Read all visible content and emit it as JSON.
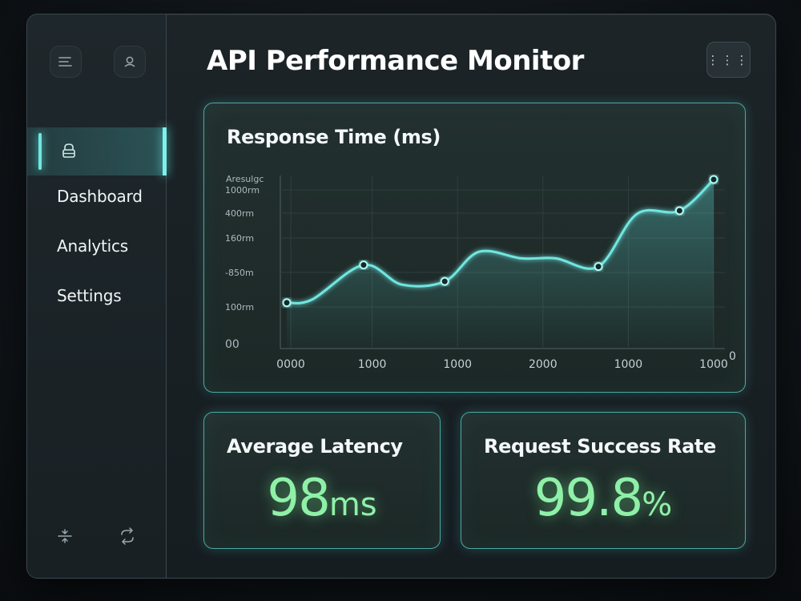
{
  "app": {
    "title": "API Performance Monitor",
    "accent": "#6fe6e0",
    "success": "#8ff0a8"
  },
  "sidebar": {
    "top_icons": [
      "menu-icon",
      "user-icon"
    ],
    "active_icon": "lock-icon",
    "items": [
      {
        "label": "Dashboard"
      },
      {
        "label": "Analytics"
      },
      {
        "label": "Settings"
      }
    ],
    "bottom_icons": [
      "collapse-icon",
      "refresh-icon"
    ]
  },
  "header": {
    "more_label": "⋮⋮⋮"
  },
  "chart_data": {
    "type": "line",
    "title": "Response Time (ms)",
    "ylabel": "Aresulgc",
    "y_ticks": [
      "1000rm",
      "400rm",
      "160rm",
      "-850m",
      "100rm",
      "00"
    ],
    "right_tick": "0",
    "x_ticks": [
      "0000",
      "1000",
      "1000",
      "2000",
      "1000",
      "1000"
    ],
    "series": [
      {
        "points": [
          {
            "x": 0,
            "y": 0.25,
            "marker": true
          },
          {
            "x": 0.06,
            "y": 0.27
          },
          {
            "x": 0.18,
            "y": 0.48,
            "marker": true
          },
          {
            "x": 0.27,
            "y": 0.36
          },
          {
            "x": 0.37,
            "y": 0.38,
            "marker": true
          },
          {
            "x": 0.45,
            "y": 0.56
          },
          {
            "x": 0.55,
            "y": 0.52
          },
          {
            "x": 0.63,
            "y": 0.52
          },
          {
            "x": 0.73,
            "y": 0.47,
            "marker": true
          },
          {
            "x": 0.82,
            "y": 0.79
          },
          {
            "x": 0.92,
            "y": 0.81,
            "marker": true
          },
          {
            "x": 1.0,
            "y": 1.0,
            "marker": true
          }
        ]
      }
    ]
  },
  "metrics": {
    "latency": {
      "label": "Average Latency",
      "value": "98",
      "unit": "ms"
    },
    "success": {
      "label": "Request Success Rate",
      "value": "99.8",
      "unit": "%"
    }
  }
}
